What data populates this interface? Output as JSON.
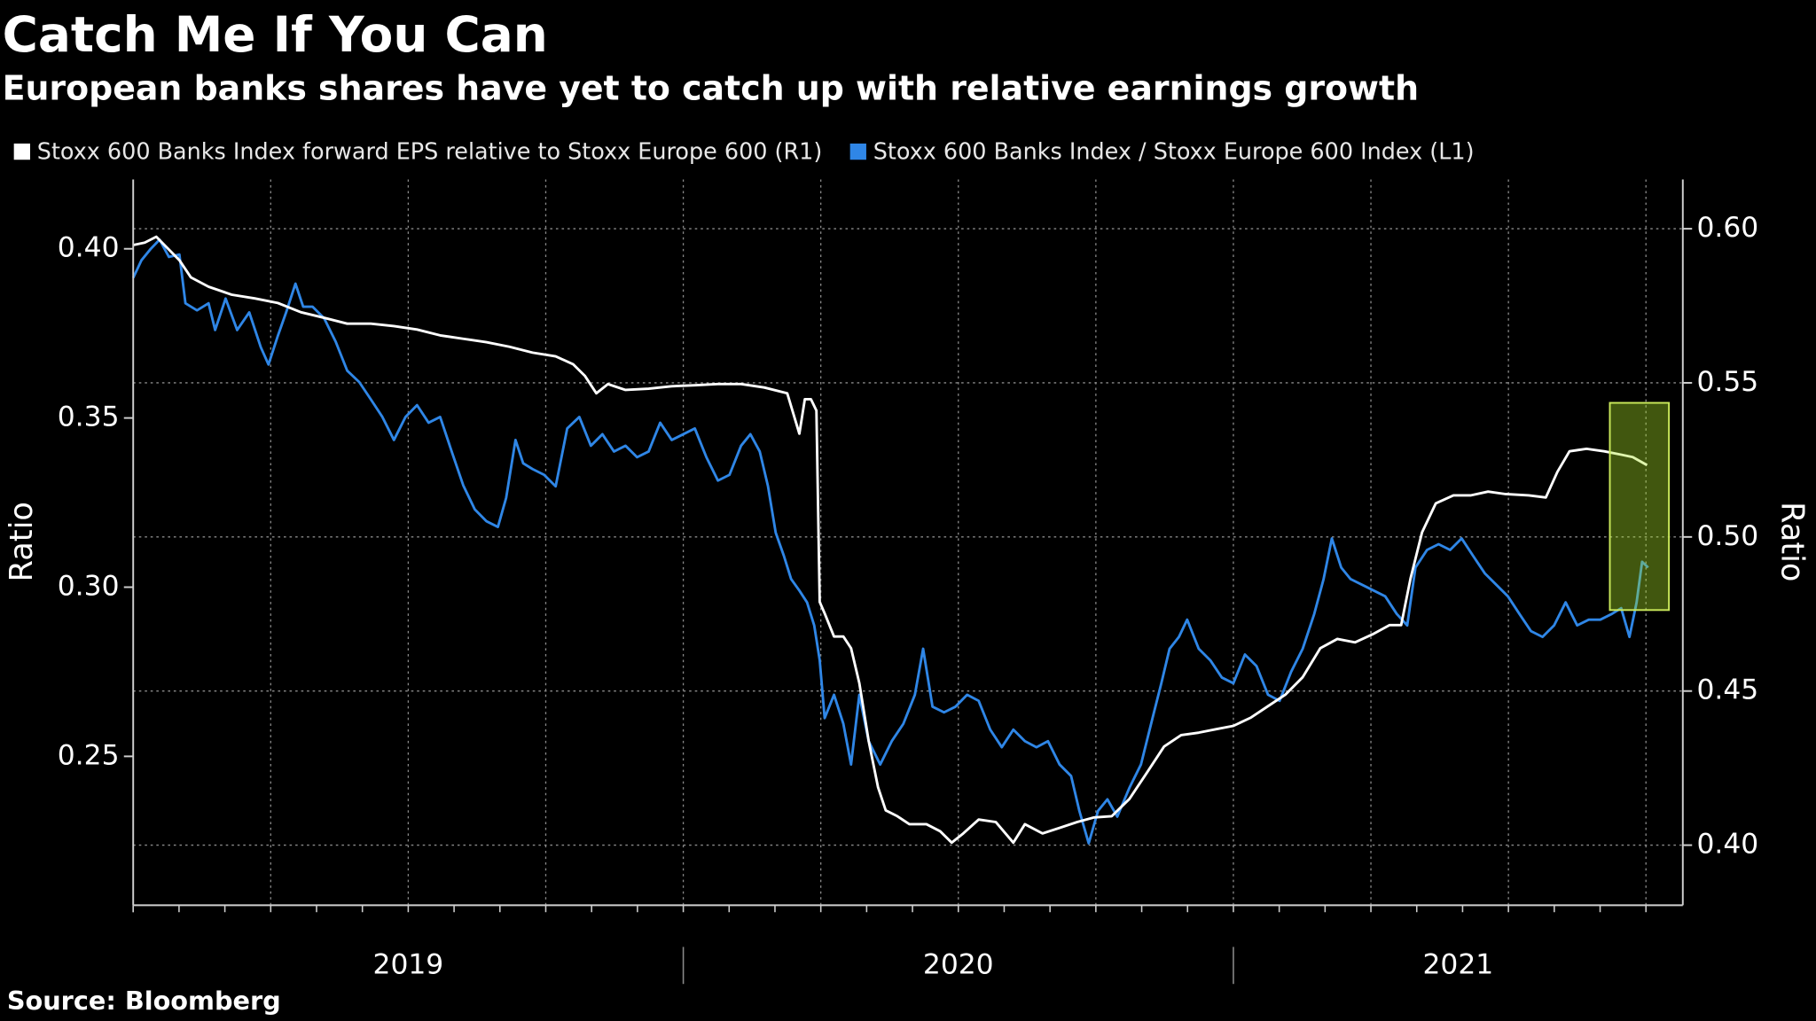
{
  "chart_data": {
    "type": "line",
    "title": "Catch Me If You Can",
    "subtitle": "European banks shares have yet to catch up with relative earnings growth",
    "source": "Source: Bloomberg",
    "ylabel": "Ratio",
    "y2label": "Ratio",
    "xlim": [
      2019,
      2021.817
    ],
    "xticks": [
      2019,
      2020,
      2021
    ],
    "ylim": [
      0.206,
      0.4205
    ],
    "yticks": [
      0.25,
      {
        "value": 0.3,
        "label": "0.30"
      },
      0.35,
      {
        "value": 0.4,
        "label": "0.40"
      }
    ],
    "y2lim": [
      0.3805,
      0.616
    ],
    "y2ticks": [
      {
        "value": 0.4,
        "label": "0.40"
      },
      0.45,
      {
        "value": 0.5,
        "label": "0.50"
      },
      0.55,
      {
        "value": 0.6,
        "label": "0.60"
      }
    ],
    "grid": true,
    "series": [
      {
        "name": "Stoxx 600 Banks Index forward EPS relative to Stoxx Europe 600 (R1)",
        "color": "#ffffff",
        "axis": "y2",
        "x": [
          2019.0,
          2019.021,
          2019.042,
          2019.063,
          2019.084,
          2019.105,
          2019.137,
          2019.179,
          2019.221,
          2019.263,
          2019.305,
          2019.347,
          2019.389,
          2019.432,
          2019.474,
          2019.516,
          2019.558,
          2019.6,
          2019.642,
          2019.684,
          2019.726,
          2019.768,
          2019.8,
          2019.821,
          2019.842,
          2019.863,
          2019.895,
          2019.937,
          2019.979,
          2020.021,
          2020.063,
          2020.105,
          2020.147,
          2020.189,
          2020.211,
          2020.221,
          2020.232,
          2020.242,
          2020.248,
          2020.257,
          2020.274,
          2020.291,
          2020.305,
          2020.32,
          2020.337,
          2020.354,
          2020.368,
          2020.389,
          2020.411,
          2020.442,
          2020.467,
          2020.488,
          2020.509,
          2020.537,
          2020.568,
          2020.6,
          2020.621,
          2020.653,
          2020.684,
          2020.716,
          2020.747,
          2020.779,
          2020.811,
          2020.842,
          2020.874,
          2020.905,
          2020.937,
          2020.968,
          2021.0,
          2021.032,
          2021.063,
          2021.095,
          2021.126,
          2021.158,
          2021.189,
          2021.221,
          2021.253,
          2021.284,
          2021.305,
          2021.322,
          2021.343,
          2021.368,
          2021.4,
          2021.432,
          2021.463,
          2021.495,
          2021.537,
          2021.568,
          2021.589,
          2021.611,
          2021.642,
          2021.674,
          2021.705,
          2021.726,
          2021.752
        ],
        "values": [
          0.5947,
          0.5955,
          0.5974,
          0.5936,
          0.5898,
          0.5842,
          0.5812,
          0.5786,
          0.5774,
          0.5759,
          0.5729,
          0.5711,
          0.5692,
          0.5692,
          0.5684,
          0.5673,
          0.5654,
          0.5643,
          0.5632,
          0.5617,
          0.5598,
          0.5586,
          0.556,
          0.5523,
          0.5466,
          0.5496,
          0.5477,
          0.5481,
          0.5489,
          0.5492,
          0.5496,
          0.5496,
          0.5485,
          0.5466,
          0.5335,
          0.5447,
          0.5447,
          0.541,
          0.4789,
          0.4752,
          0.4677,
          0.4677,
          0.4639,
          0.4526,
          0.4338,
          0.4188,
          0.4113,
          0.4094,
          0.4068,
          0.4068,
          0.4045,
          0.4008,
          0.4038,
          0.4083,
          0.4075,
          0.4008,
          0.4068,
          0.4038,
          0.4056,
          0.4075,
          0.409,
          0.4094,
          0.415,
          0.4233,
          0.432,
          0.4357,
          0.4365,
          0.4376,
          0.4387,
          0.4414,
          0.4451,
          0.4489,
          0.4545,
          0.4639,
          0.4669,
          0.4658,
          0.4684,
          0.4714,
          0.4714,
          0.4865,
          0.5015,
          0.5109,
          0.5135,
          0.5135,
          0.5147,
          0.5139,
          0.5135,
          0.5128,
          0.5211,
          0.5278,
          0.5286,
          0.5278,
          0.5267,
          0.5259,
          0.5233
        ]
      },
      {
        "name": "Stoxx 600 Banks Index / Stoxx Europe 600 Index (L1)",
        "color": "#2f86e6",
        "x": [
          2019.0,
          2019.015,
          2019.032,
          2019.048,
          2019.065,
          2019.084,
          2019.095,
          2019.116,
          2019.137,
          2019.149,
          2019.168,
          2019.189,
          2019.211,
          2019.232,
          2019.246,
          2019.263,
          2019.278,
          2019.295,
          2019.309,
          2019.326,
          2019.347,
          2019.368,
          2019.389,
          2019.411,
          2019.432,
          2019.453,
          2019.474,
          2019.495,
          2019.516,
          2019.537,
          2019.558,
          2019.579,
          2019.6,
          2019.621,
          2019.642,
          2019.663,
          2019.678,
          2019.695,
          2019.709,
          2019.726,
          2019.747,
          2019.768,
          2019.789,
          2019.811,
          2019.832,
          2019.853,
          2019.874,
          2019.895,
          2019.916,
          2019.937,
          2019.958,
          2019.979,
          2020.0,
          2020.021,
          2020.042,
          2020.063,
          2020.084,
          2020.105,
          2020.122,
          2020.139,
          2020.154,
          2020.168,
          2020.183,
          2020.196,
          2020.211,
          2020.225,
          2020.238,
          2020.248,
          2020.257,
          2020.274,
          2020.291,
          2020.305,
          2020.32,
          2020.337,
          2020.358,
          2020.379,
          2020.4,
          2020.421,
          2020.436,
          2020.453,
          2020.474,
          2020.495,
          2020.516,
          2020.537,
          2020.558,
          2020.579,
          2020.6,
          2020.621,
          2020.642,
          2020.663,
          2020.684,
          2020.705,
          2020.72,
          2020.737,
          2020.754,
          2020.771,
          2020.789,
          2020.811,
          2020.832,
          2020.853,
          2020.869,
          2020.884,
          2020.901,
          2020.916,
          2020.937,
          2020.958,
          2020.979,
          2021.0,
          2021.021,
          2021.042,
          2021.063,
          2021.084,
          2021.105,
          2021.126,
          2021.147,
          2021.164,
          2021.179,
          2021.196,
          2021.213,
          2021.234,
          2021.255,
          2021.276,
          2021.297,
          2021.316,
          2021.331,
          2021.352,
          2021.373,
          2021.394,
          2021.415,
          2021.436,
          2021.457,
          2021.478,
          2021.499,
          2021.52,
          2021.541,
          2021.562,
          2021.583,
          2021.604,
          2021.625,
          2021.646,
          2021.667,
          2021.688,
          2021.705,
          2021.72,
          2021.733,
          2021.743,
          2021.754
        ],
        "values": [
          0.3914,
          0.3966,
          0.4,
          0.4027,
          0.3976,
          0.3983,
          0.3839,
          0.3818,
          0.3839,
          0.376,
          0.3853,
          0.376,
          0.3812,
          0.3709,
          0.3658,
          0.3743,
          0.3812,
          0.3897,
          0.3829,
          0.3829,
          0.3795,
          0.3726,
          0.364,
          0.3606,
          0.3555,
          0.3503,
          0.3435,
          0.3503,
          0.3538,
          0.3486,
          0.3503,
          0.3401,
          0.3301,
          0.323,
          0.3195,
          0.3178,
          0.3264,
          0.3435,
          0.3366,
          0.3349,
          0.3332,
          0.3298,
          0.3469,
          0.3503,
          0.3418,
          0.3452,
          0.3401,
          0.3418,
          0.3384,
          0.3401,
          0.3486,
          0.3435,
          0.3452,
          0.3469,
          0.3384,
          0.3315,
          0.3332,
          0.3418,
          0.3452,
          0.3401,
          0.3298,
          0.3161,
          0.3092,
          0.3024,
          0.299,
          0.2955,
          0.2887,
          0.2784,
          0.2613,
          0.2682,
          0.2596,
          0.2476,
          0.2682,
          0.2545,
          0.2476,
          0.2545,
          0.2596,
          0.2682,
          0.2818,
          0.2647,
          0.263,
          0.2647,
          0.2682,
          0.2664,
          0.2579,
          0.2527,
          0.2579,
          0.2545,
          0.2527,
          0.2545,
          0.2476,
          0.2442,
          0.2339,
          0.2243,
          0.2339,
          0.2373,
          0.2322,
          0.2407,
          0.2476,
          0.2613,
          0.2716,
          0.2818,
          0.2853,
          0.2904,
          0.2818,
          0.2784,
          0.2733,
          0.2716,
          0.2801,
          0.2767,
          0.2682,
          0.2664,
          0.275,
          0.2818,
          0.2921,
          0.3024,
          0.3144,
          0.3058,
          0.3024,
          0.3007,
          0.299,
          0.2973,
          0.2921,
          0.2887,
          0.3058,
          0.311,
          0.3127,
          0.311,
          0.3144,
          0.3092,
          0.3041,
          0.3007,
          0.2973,
          0.2921,
          0.287,
          0.2853,
          0.2887,
          0.2955,
          0.2887,
          0.2904,
          0.2904,
          0.2921,
          0.2938,
          0.2853,
          0.2955,
          0.3075,
          0.3058
        ]
      }
    ]
  }
}
